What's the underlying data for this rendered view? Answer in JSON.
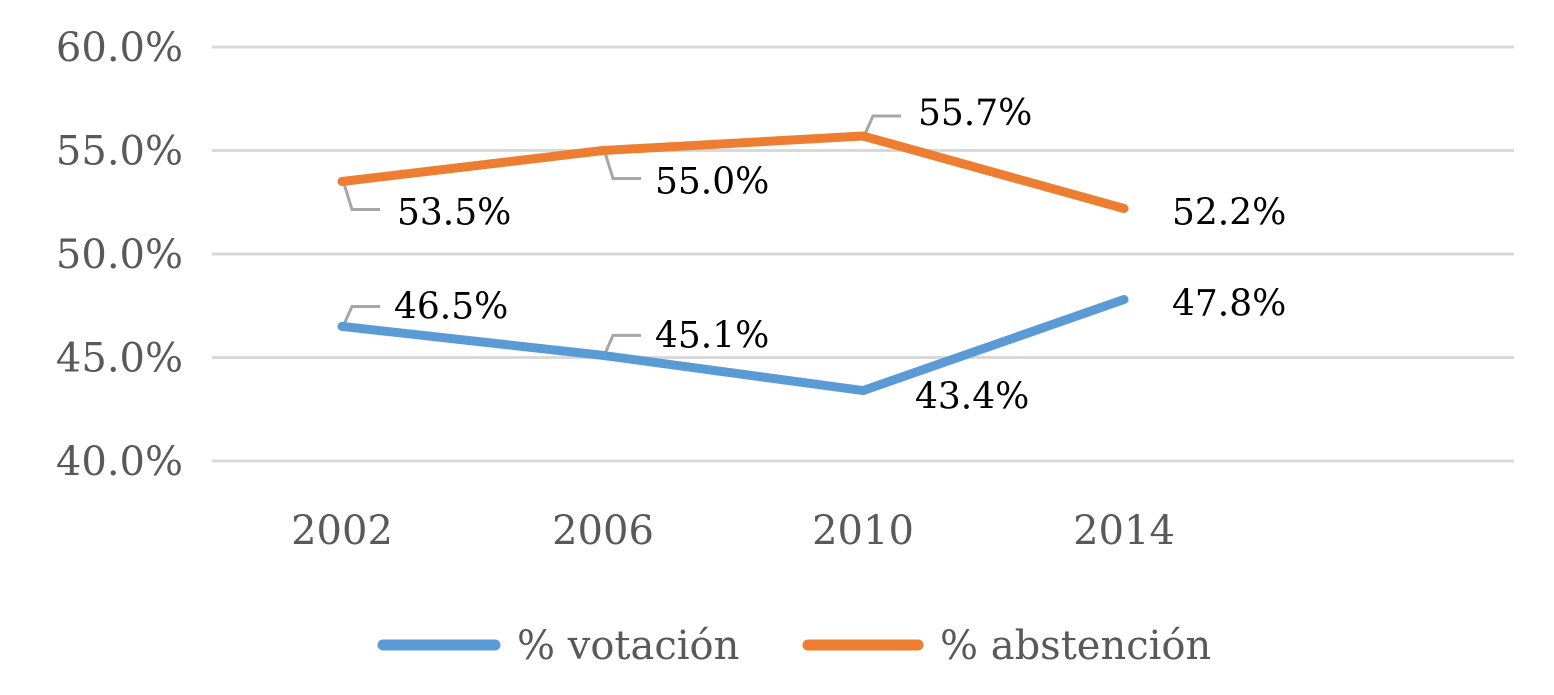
{
  "chart_data": {
    "type": "line",
    "title": "",
    "xlabel": "",
    "ylabel": "",
    "categories": [
      "2002",
      "2006",
      "2010",
      "2014"
    ],
    "ylim": [
      0.4,
      0.6
    ],
    "yticks": [
      {
        "value": 0.4,
        "label": "40.0%"
      },
      {
        "value": 0.45,
        "label": "45.0%"
      },
      {
        "value": 0.5,
        "label": "50.0%"
      },
      {
        "value": 0.55,
        "label": "55.0%"
      },
      {
        "value": 0.6,
        "label": "60.0%"
      }
    ],
    "grid": true,
    "legend_position": "bottom",
    "series": [
      {
        "name": "% votación",
        "color": "#5B9BD5",
        "values": [
          0.465,
          0.451,
          0.434,
          0.478
        ],
        "labels": [
          "46.5%",
          "45.1%",
          "43.4%",
          "47.8%"
        ]
      },
      {
        "name": "% abstención",
        "color": "#ED7D31",
        "values": [
          0.535,
          0.55,
          0.557,
          0.522
        ],
        "labels": [
          "53.5%",
          "55.0%",
          "55.7%",
          "52.2%"
        ]
      }
    ]
  }
}
